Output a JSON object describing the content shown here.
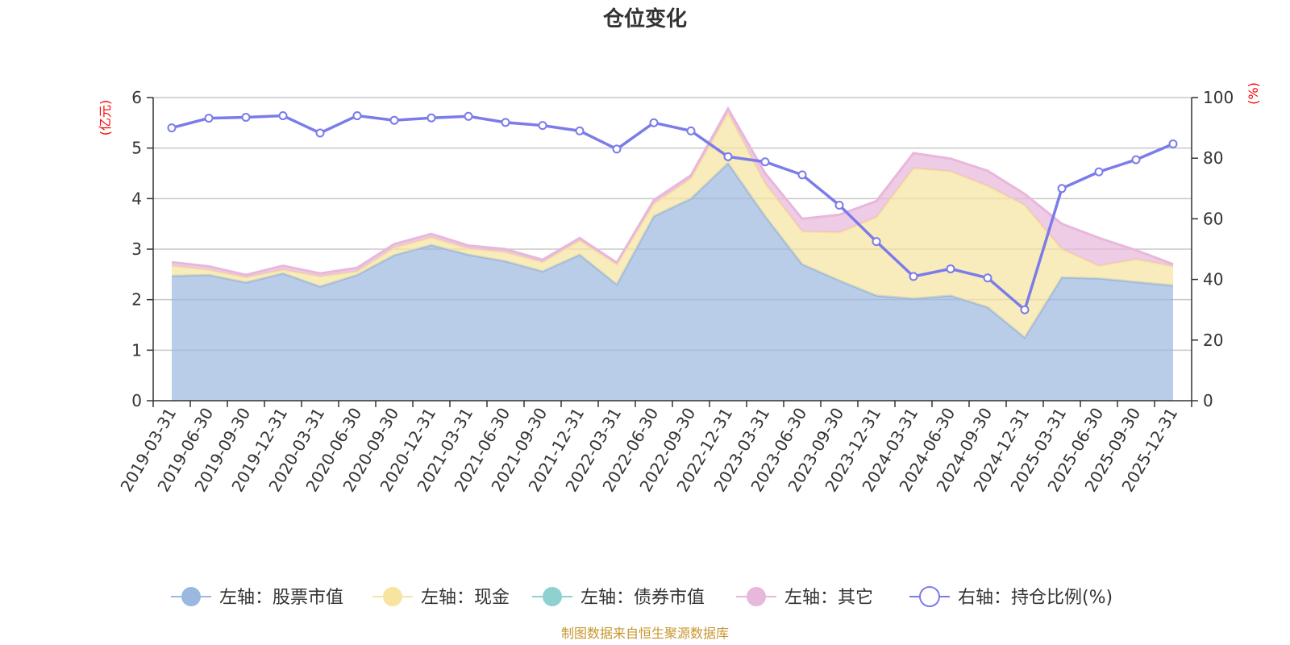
{
  "chart_data": {
    "type": "area",
    "title": "仓位变化",
    "categories": [
      "2019-03-31",
      "2019-06-30",
      "2019-09-30",
      "2019-12-31",
      "2020-03-31",
      "2020-06-30",
      "2020-09-30",
      "2020-12-31",
      "2021-03-31",
      "2021-06-30",
      "2021-09-30",
      "2021-12-31",
      "2022-03-31",
      "2022-06-30",
      "2022-09-30",
      "2022-12-31",
      "2023-03-31",
      "2023-06-30",
      "2023-09-30",
      "2023-12-31",
      "2024-03-31",
      "2024-06-30",
      "2024-09-30",
      "2024-12-31",
      "2025-03-31",
      "2025-06-30",
      "2025-09-30",
      "2025-12-31"
    ],
    "left_axis": {
      "unit": "(亿元)",
      "ylim": [
        0,
        6
      ],
      "ticks": [
        0,
        1,
        2,
        3,
        4,
        5,
        6
      ]
    },
    "right_axis": {
      "unit": "(%)",
      "ylim": [
        0,
        100
      ],
      "ticks": [
        0,
        20,
        40,
        60,
        80,
        100
      ]
    },
    "grid": true,
    "legend_position": "bottom",
    "series": [
      {
        "name": "左轴：股票市值",
        "axis": "left",
        "stack": true,
        "color": "#9bb8e0",
        "values": [
          2.47,
          2.49,
          2.34,
          2.52,
          2.26,
          2.49,
          2.88,
          3.08,
          2.89,
          2.76,
          2.56,
          2.89,
          2.3,
          3.65,
          4.0,
          4.7,
          3.65,
          2.7,
          2.38,
          2.08,
          2.02,
          2.08,
          1.85,
          1.25,
          2.44,
          2.42,
          2.35,
          2.28
        ]
      },
      {
        "name": "左轴：现金",
        "axis": "left",
        "stack": true,
        "color": "#f7e4a0",
        "values": [
          0.2,
          0.1,
          0.1,
          0.07,
          0.2,
          0.07,
          0.15,
          0.15,
          0.12,
          0.18,
          0.18,
          0.28,
          0.4,
          0.25,
          0.4,
          1.0,
          0.65,
          0.65,
          0.95,
          1.55,
          2.58,
          2.46,
          2.4,
          2.62,
          0.56,
          0.25,
          0.45,
          0.38
        ]
      },
      {
        "name": "左轴：债券市值",
        "axis": "left",
        "stack": true,
        "color": "#8fd1d1",
        "values": [
          0,
          0,
          0,
          0,
          0,
          0,
          0,
          0,
          0,
          0,
          0,
          0,
          0,
          0,
          0,
          0,
          0,
          0,
          0,
          0,
          0,
          0,
          0,
          0,
          0,
          0,
          0,
          0
        ]
      },
      {
        "name": "左轴：其它",
        "axis": "left",
        "stack": true,
        "color": "#e8b7dc",
        "values": [
          0.07,
          0.07,
          0.05,
          0.08,
          0.06,
          0.07,
          0.07,
          0.07,
          0.06,
          0.06,
          0.05,
          0.05,
          0.03,
          0.07,
          0.06,
          0.08,
          0.2,
          0.25,
          0.35,
          0.32,
          0.3,
          0.25,
          0.3,
          0.22,
          0.5,
          0.55,
          0.18,
          0.04
        ]
      },
      {
        "name": "右轴：持仓比例(%)",
        "axis": "right",
        "type": "line",
        "color": "#7b7bea",
        "values": [
          90.0,
          93.2,
          93.5,
          94.0,
          88.3,
          94.0,
          92.5,
          93.3,
          93.8,
          91.8,
          90.8,
          89.0,
          83.0,
          91.7,
          89.0,
          80.5,
          78.8,
          74.5,
          64.5,
          52.5,
          41.0,
          43.5,
          40.5,
          30.0,
          70.0,
          75.5,
          79.5,
          84.7
        ]
      }
    ]
  },
  "legend": [
    {
      "label": "左轴：股票市值",
      "color": "#9bb8e0",
      "shape": "filled-circle"
    },
    {
      "label": "左轴：现金",
      "color": "#f7e4a0",
      "shape": "filled-circle"
    },
    {
      "label": "左轴：债券市值",
      "color": "#8fd1d1",
      "shape": "filled-circle"
    },
    {
      "label": "左轴：其它",
      "color": "#e8b7dc",
      "shape": "filled-circle"
    },
    {
      "label": "右轴：持仓比例(%)",
      "color": "#7b7bea",
      "shape": "hollow-circle"
    }
  ],
  "source": "制图数据来自恒生聚源数据库"
}
